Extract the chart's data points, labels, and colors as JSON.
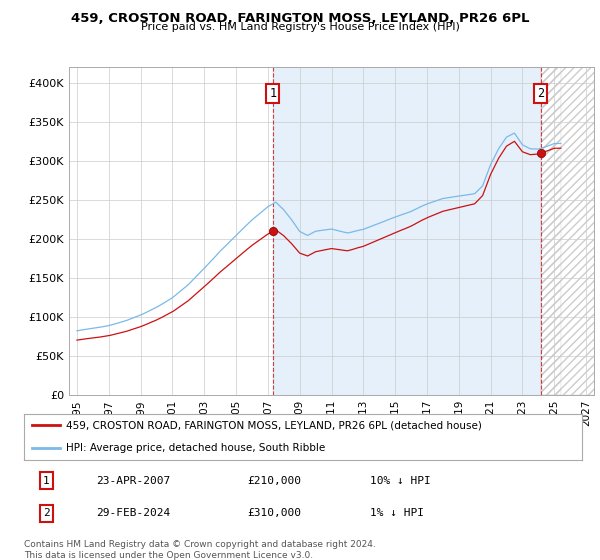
{
  "title": "459, CROSTON ROAD, FARINGTON MOSS, LEYLAND, PR26 6PL",
  "subtitle": "Price paid vs. HM Land Registry's House Price Index (HPI)",
  "ylabel_vals": [
    0,
    50000,
    100000,
    150000,
    200000,
    250000,
    300000,
    350000,
    400000
  ],
  "ylabel_labels": [
    "£0",
    "£50K",
    "£100K",
    "£150K",
    "£200K",
    "£250K",
    "£300K",
    "£350K",
    "£400K"
  ],
  "ylim": [
    0,
    420000
  ],
  "hpi_color": "#7ab9e8",
  "hpi_fill_color": "#daeaf8",
  "price_color": "#cc1111",
  "annotation_box_color": "#cc1111",
  "legend_label_price": "459, CROSTON ROAD, FARINGTON MOSS, LEYLAND, PR26 6PL (detached house)",
  "legend_label_hpi": "HPI: Average price, detached house, South Ribble",
  "transaction1_label": "1",
  "transaction1_date": "23-APR-2007",
  "transaction1_price": "£210,000",
  "transaction1_hpi": "10% ↓ HPI",
  "transaction2_label": "2",
  "transaction2_date": "29-FEB-2024",
  "transaction2_price": "£310,000",
  "transaction2_hpi": "1% ↓ HPI",
  "footer": "Contains HM Land Registry data © Crown copyright and database right 2024.\nThis data is licensed under the Open Government Licence v3.0.",
  "x_sale1": 2007.31,
  "y_sale1": 210000,
  "x_sale2": 2024.16,
  "y_sale2": 310000,
  "xlim_left": 1994.5,
  "xlim_right": 2027.5,
  "xtick_years": [
    1995,
    1997,
    1999,
    2001,
    2003,
    2005,
    2007,
    2009,
    2011,
    2013,
    2015,
    2017,
    2019,
    2021,
    2023,
    2025,
    2027
  ],
  "background_color": "#ffffff",
  "grid_color": "#cccccc"
}
